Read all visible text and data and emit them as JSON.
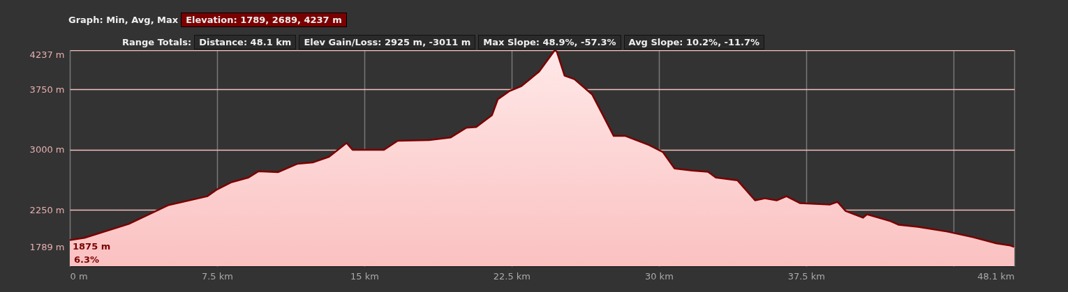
{
  "chart_data": {
    "type": "area",
    "annotations": [
      "Graph: Min, Avg, Max",
      "Elevation: 1789, 2689, 4237 m",
      "Range Totals:",
      "Distance: 48.1 km",
      "Elev Gain/Loss: 2925 m, -3011 m",
      "Max Slope: 48.9%, -57.3%",
      "Avg Slope: 10.2%, -11.7%",
      {
        "text": "1875 m",
        "x": 0,
        "y": 1875
      },
      "6.3%"
    ],
    "x": [
      0,
      0.75,
      3.0,
      5.0,
      7.0,
      7.5,
      8.2,
      9.1,
      9.6,
      10.6,
      11.6,
      12.4,
      13.2,
      14.1,
      14.4,
      16.0,
      16.7,
      18.3,
      19.4,
      20.2,
      20.7,
      21.5,
      21.8,
      22.4,
      23.0,
      23.9,
      24.7,
      24.8,
      25.2,
      25.7,
      26.6,
      27.1,
      27.7,
      28.3,
      29.5,
      30.2,
      30.8,
      31.7,
      32.5,
      32.9,
      34.0,
      34.9,
      35.4,
      36.0,
      36.5,
      37.2,
      38.7,
      39.1,
      39.5,
      40.4,
      40.6,
      41.8,
      42.2,
      43.2,
      44.7,
      46.0,
      47.2,
      47.9,
      48.1
    ],
    "series": [
      {
        "color": "#7a0000",
        "values": [
          1875,
          1903,
          2075,
          2308,
          2420,
          2505,
          2592,
          2653,
          2730,
          2720,
          2825,
          2842,
          2911,
          3083,
          2998,
          2998,
          3110,
          3118,
          3152,
          3273,
          3282,
          3428,
          3627,
          3730,
          3790,
          3971,
          4237,
          4220,
          3919,
          3876,
          3687,
          3454,
          3170,
          3170,
          3057,
          2971,
          2765,
          2739,
          2725,
          2653,
          2619,
          2369,
          2394,
          2369,
          2420,
          2334,
          2316,
          2351,
          2239,
          2153,
          2196,
          2110,
          2066,
          2040,
          1980,
          1911,
          1834,
          1808,
          1789
        ]
      }
    ],
    "xlim": [
      0,
      48.1
    ],
    "xticks": [
      {
        "value": 0,
        "label": "0 m"
      },
      {
        "value": 7.5,
        "label": "7.5 km"
      },
      {
        "value": 15,
        "label": "15 km"
      },
      {
        "value": 22.5,
        "label": "22.5 km"
      },
      {
        "value": 30,
        "label": "30 km"
      },
      {
        "value": 37.5,
        "label": "37.5 km"
      },
      {
        "value": 45,
        "label": null
      },
      {
        "value": 48.1,
        "label": "48.1 km"
      }
    ],
    "ylim": [
      1550,
      4237
    ],
    "yticks": [
      {
        "value": 1789,
        "label": "1789 m"
      },
      {
        "value": 2250,
        "label": "2250 m"
      },
      {
        "value": 3000,
        "label": "3000 m"
      },
      {
        "value": 3750,
        "label": "3750 m"
      },
      {
        "value": 4237,
        "label": "4237 m"
      }
    ],
    "grid": true
  }
}
